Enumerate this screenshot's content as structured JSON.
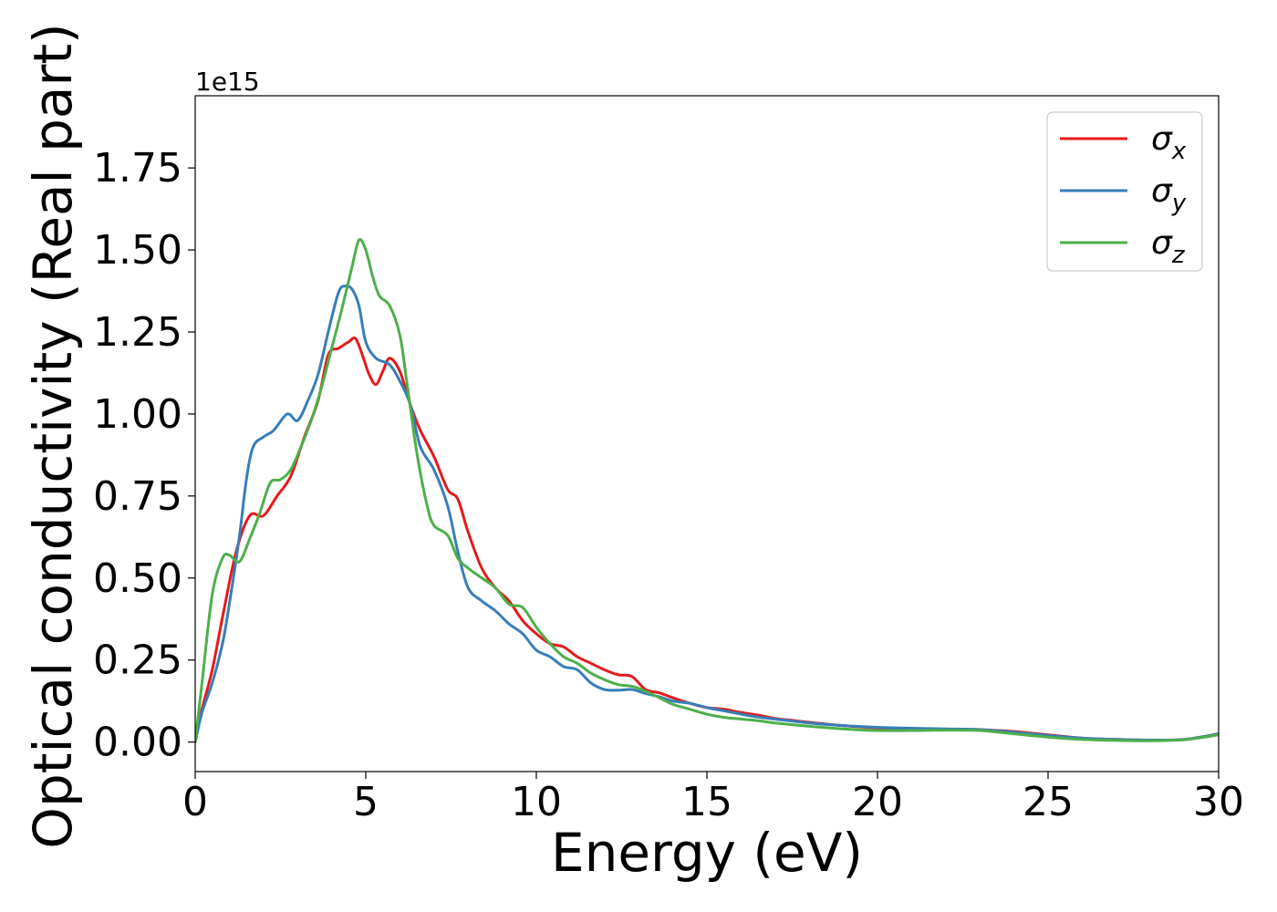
{
  "chart_data": {
    "type": "line",
    "xlabel": "Energy (eV)",
    "ylabel": "Optical conductivity (Real part)",
    "y_offset_label": "1e15",
    "y_scale_factor": 1000000000000000.0,
    "xlim": [
      0,
      30
    ],
    "ylim": [
      -0.09,
      1.97
    ],
    "x_ticks": [
      0,
      5,
      10,
      15,
      20,
      25,
      30
    ],
    "x_tick_labels": [
      "0",
      "5",
      "10",
      "15",
      "20",
      "25",
      "30"
    ],
    "y_ticks": [
      0.0,
      0.25,
      0.5,
      0.75,
      1.0,
      1.25,
      1.5,
      1.75
    ],
    "y_tick_labels": [
      "0.00",
      "0.25",
      "0.50",
      "0.75",
      "1.00",
      "1.25",
      "1.50",
      "1.75"
    ],
    "grid": false,
    "legend_position": "top-right",
    "series": [
      {
        "name": "σx",
        "legend_base": "σ",
        "legend_sub": "x",
        "color": "#e41a1c",
        "points": [
          [
            0,
            0.0
          ],
          [
            0.2,
            0.1
          ],
          [
            0.5,
            0.22
          ],
          [
            0.8,
            0.38
          ],
          [
            1.2,
            0.58
          ],
          [
            1.6,
            0.69
          ],
          [
            2.0,
            0.69
          ],
          [
            2.4,
            0.75
          ],
          [
            2.8,
            0.81
          ],
          [
            3.2,
            0.93
          ],
          [
            3.6,
            1.04
          ],
          [
            3.9,
            1.18
          ],
          [
            4.2,
            1.2
          ],
          [
            4.5,
            1.22
          ],
          [
            4.7,
            1.23
          ],
          [
            4.9,
            1.18
          ],
          [
            5.1,
            1.12
          ],
          [
            5.3,
            1.09
          ],
          [
            5.5,
            1.13
          ],
          [
            5.7,
            1.17
          ],
          [
            6.0,
            1.13
          ],
          [
            6.3,
            1.03
          ],
          [
            6.6,
            0.95
          ],
          [
            7.0,
            0.87
          ],
          [
            7.4,
            0.77
          ],
          [
            7.7,
            0.74
          ],
          [
            8.0,
            0.64
          ],
          [
            8.4,
            0.53
          ],
          [
            8.8,
            0.47
          ],
          [
            9.2,
            0.43
          ],
          [
            9.6,
            0.37
          ],
          [
            10.0,
            0.33
          ],
          [
            10.4,
            0.3
          ],
          [
            10.8,
            0.29
          ],
          [
            11.2,
            0.26
          ],
          [
            11.6,
            0.24
          ],
          [
            12.0,
            0.22
          ],
          [
            12.4,
            0.205
          ],
          [
            12.8,
            0.2
          ],
          [
            13.2,
            0.16
          ],
          [
            13.6,
            0.15
          ],
          [
            14.0,
            0.135
          ],
          [
            14.5,
            0.118
          ],
          [
            15.0,
            0.105
          ],
          [
            15.5,
            0.1
          ],
          [
            16.0,
            0.09
          ],
          [
            16.5,
            0.082
          ],
          [
            17.0,
            0.072
          ],
          [
            17.5,
            0.066
          ],
          [
            18.0,
            0.06
          ],
          [
            19.0,
            0.05
          ],
          [
            20.0,
            0.043
          ],
          [
            21.0,
            0.04
          ],
          [
            22.0,
            0.039
          ],
          [
            23.0,
            0.038
          ],
          [
            24.0,
            0.032
          ],
          [
            25.0,
            0.022
          ],
          [
            26.0,
            0.012
          ],
          [
            27.0,
            0.008
          ],
          [
            28.0,
            0.006
          ],
          [
            29.0,
            0.008
          ],
          [
            30.0,
            0.025
          ]
        ]
      },
      {
        "name": "σy",
        "legend_base": "σ",
        "legend_sub": "y",
        "color": "#377eb8",
        "points": [
          [
            0,
            0.0
          ],
          [
            0.2,
            0.09
          ],
          [
            0.5,
            0.18
          ],
          [
            0.8,
            0.3
          ],
          [
            1.0,
            0.42
          ],
          [
            1.3,
            0.63
          ],
          [
            1.5,
            0.8
          ],
          [
            1.7,
            0.9
          ],
          [
            2.0,
            0.93
          ],
          [
            2.3,
            0.95
          ],
          [
            2.7,
            1.0
          ],
          [
            3.0,
            0.98
          ],
          [
            3.3,
            1.04
          ],
          [
            3.6,
            1.12
          ],
          [
            3.9,
            1.25
          ],
          [
            4.2,
            1.37
          ],
          [
            4.4,
            1.39
          ],
          [
            4.6,
            1.38
          ],
          [
            4.8,
            1.33
          ],
          [
            5.0,
            1.22
          ],
          [
            5.3,
            1.17
          ],
          [
            5.7,
            1.15
          ],
          [
            6.0,
            1.1
          ],
          [
            6.3,
            1.03
          ],
          [
            6.6,
            0.9
          ],
          [
            7.0,
            0.83
          ],
          [
            7.4,
            0.72
          ],
          [
            7.7,
            0.58
          ],
          [
            8.0,
            0.47
          ],
          [
            8.4,
            0.43
          ],
          [
            8.8,
            0.4
          ],
          [
            9.2,
            0.36
          ],
          [
            9.6,
            0.33
          ],
          [
            10.0,
            0.28
          ],
          [
            10.4,
            0.26
          ],
          [
            10.8,
            0.23
          ],
          [
            11.2,
            0.22
          ],
          [
            11.6,
            0.18
          ],
          [
            12.0,
            0.16
          ],
          [
            12.4,
            0.158
          ],
          [
            12.8,
            0.16
          ],
          [
            13.2,
            0.148
          ],
          [
            13.6,
            0.138
          ],
          [
            14.0,
            0.125
          ],
          [
            14.5,
            0.118
          ],
          [
            15.0,
            0.105
          ],
          [
            15.5,
            0.095
          ],
          [
            16.0,
            0.085
          ],
          [
            16.5,
            0.076
          ],
          [
            17.0,
            0.07
          ],
          [
            18.0,
            0.058
          ],
          [
            19.0,
            0.05
          ],
          [
            20.0,
            0.045
          ],
          [
            21.0,
            0.042
          ],
          [
            22.0,
            0.04
          ],
          [
            23.0,
            0.038
          ],
          [
            24.0,
            0.03
          ],
          [
            25.0,
            0.02
          ],
          [
            26.0,
            0.012
          ],
          [
            27.0,
            0.008
          ],
          [
            28.0,
            0.006
          ],
          [
            29.0,
            0.008
          ],
          [
            30.0,
            0.025
          ]
        ]
      },
      {
        "name": "σz",
        "legend_base": "σ",
        "legend_sub": "z",
        "color": "#4daf4a",
        "points": [
          [
            0,
            0.0
          ],
          [
            0.2,
            0.18
          ],
          [
            0.5,
            0.45
          ],
          [
            0.8,
            0.56
          ],
          [
            1.0,
            0.57
          ],
          [
            1.3,
            0.55
          ],
          [
            1.6,
            0.62
          ],
          [
            1.9,
            0.7
          ],
          [
            2.2,
            0.79
          ],
          [
            2.5,
            0.8
          ],
          [
            2.8,
            0.83
          ],
          [
            3.1,
            0.9
          ],
          [
            3.4,
            0.98
          ],
          [
            3.7,
            1.08
          ],
          [
            4.0,
            1.2
          ],
          [
            4.3,
            1.32
          ],
          [
            4.6,
            1.45
          ],
          [
            4.8,
            1.53
          ],
          [
            5.0,
            1.5
          ],
          [
            5.2,
            1.42
          ],
          [
            5.4,
            1.36
          ],
          [
            5.7,
            1.33
          ],
          [
            6.0,
            1.24
          ],
          [
            6.2,
            1.1
          ],
          [
            6.5,
            0.88
          ],
          [
            6.8,
            0.72
          ],
          [
            7.0,
            0.66
          ],
          [
            7.4,
            0.63
          ],
          [
            7.7,
            0.56
          ],
          [
            8.0,
            0.53
          ],
          [
            8.4,
            0.5
          ],
          [
            8.8,
            0.47
          ],
          [
            9.2,
            0.42
          ],
          [
            9.6,
            0.41
          ],
          [
            10.0,
            0.35
          ],
          [
            10.4,
            0.3
          ],
          [
            10.8,
            0.26
          ],
          [
            11.2,
            0.24
          ],
          [
            11.6,
            0.21
          ],
          [
            12.0,
            0.19
          ],
          [
            12.4,
            0.175
          ],
          [
            12.8,
            0.17
          ],
          [
            13.2,
            0.155
          ],
          [
            13.6,
            0.135
          ],
          [
            14.0,
            0.115
          ],
          [
            14.5,
            0.1
          ],
          [
            15.0,
            0.085
          ],
          [
            15.5,
            0.075
          ],
          [
            16.0,
            0.07
          ],
          [
            16.5,
            0.065
          ],
          [
            17.0,
            0.058
          ],
          [
            18.0,
            0.048
          ],
          [
            19.0,
            0.04
          ],
          [
            20.0,
            0.035
          ],
          [
            21.0,
            0.035
          ],
          [
            22.0,
            0.036
          ],
          [
            23.0,
            0.035
          ],
          [
            24.0,
            0.025
          ],
          [
            25.0,
            0.015
          ],
          [
            26.0,
            0.008
          ],
          [
            27.0,
            0.005
          ],
          [
            28.0,
            0.004
          ],
          [
            29.0,
            0.007
          ],
          [
            30.0,
            0.022
          ]
        ]
      }
    ]
  }
}
